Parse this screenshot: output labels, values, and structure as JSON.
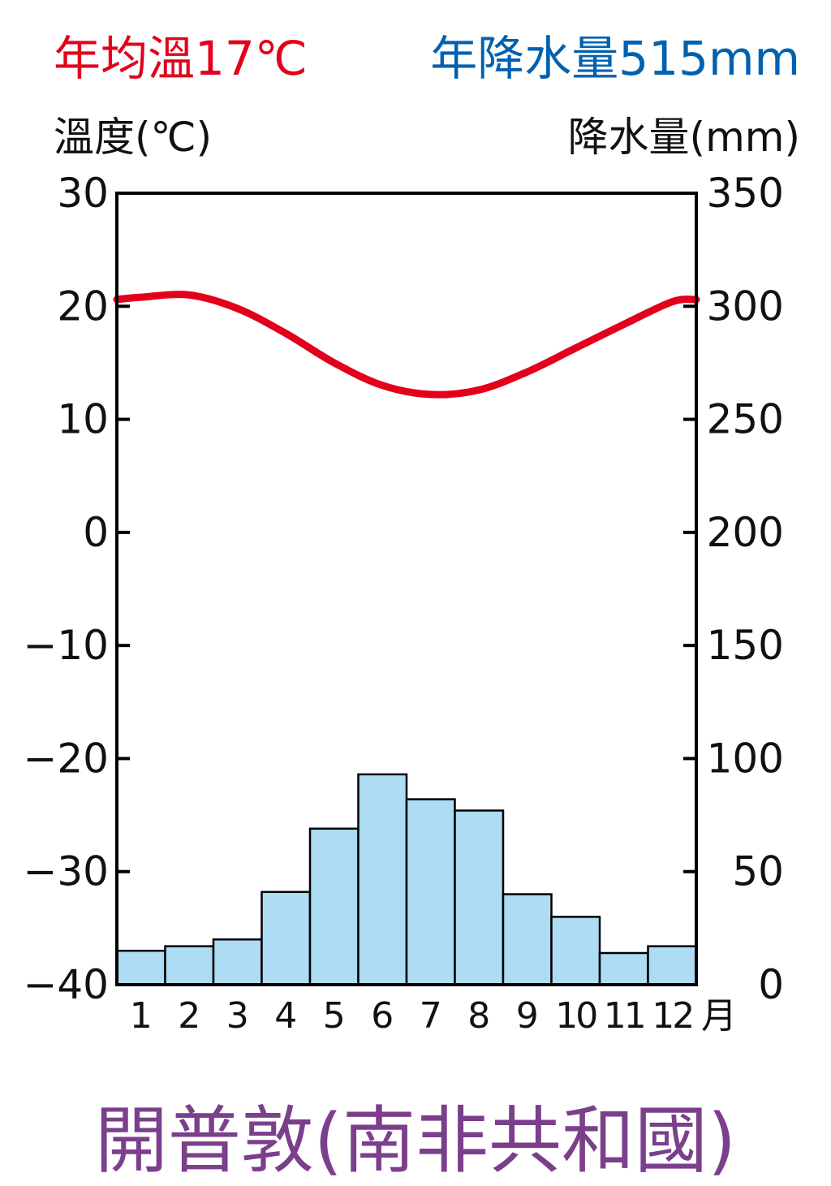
{
  "annual_temp_label": "年均溫17℃",
  "annual_precip_label": "年降水量515mm",
  "station_name": "開普敦(南非共和國)",
  "colors": {
    "temperature": "#e3001b",
    "precipitation_text": "#0061b0",
    "bar_fill": "#aedcf5",
    "station_name": "#7b3f8c"
  },
  "chart_data": {
    "type": "bar",
    "left_axis_label": "溫度(℃)",
    "right_axis_label": "降水量(mm)",
    "x_unit_label": "月",
    "categories": [
      "1",
      "2",
      "3",
      "4",
      "5",
      "6",
      "7",
      "8",
      "9",
      "10",
      "11",
      "12"
    ],
    "temp_ylim": [
      -40,
      30
    ],
    "temp_ticks": [
      30,
      20,
      10,
      0,
      -10,
      -20,
      -30,
      -40
    ],
    "temp_tick_labels": [
      "30",
      "20",
      "10",
      "0",
      "−10",
      "−20",
      "−30",
      "−40"
    ],
    "precip_ylim": [
      0,
      350
    ],
    "precip_ticks": [
      350,
      300,
      250,
      200,
      150,
      100,
      50,
      0
    ],
    "precip_tick_labels": [
      "350",
      "300",
      "250",
      "200",
      "150",
      "100",
      "50",
      "0"
    ],
    "series": [
      {
        "kind": "bar",
        "values": [
          15,
          17,
          20,
          41,
          69,
          93,
          82,
          77,
          40,
          30,
          14,
          17
        ]
      },
      {
        "kind": "line",
        "values": [
          20.8,
          21.0,
          19.8,
          17.6,
          15.0,
          13.0,
          12.2,
          12.6,
          14.2,
          16.3,
          18.4,
          20.4
        ]
      }
    ]
  }
}
